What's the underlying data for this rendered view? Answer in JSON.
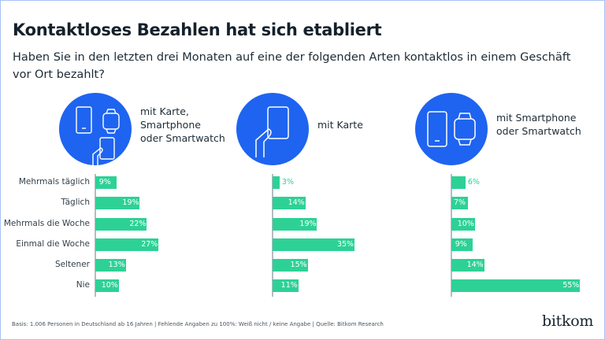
{
  "title": "Kontaktloses Bezahlen hat sich etabliert",
  "subtitle": "Haben Sie in den letzten drei Monaten auf eine der folgenden Arten kontaktlos in einem Geschäft vor Ort bezahlt?",
  "footer": "Basis: 1.006 Personen in Deutschland ab 16 Jahren | Fehlende Angaben zu 100%: Weiß nicht / keine Angabe | Quelle: Bitkom Research",
  "logo": "bitkom",
  "colors": {
    "icon_circle": "#1e64f0",
    "bar": "#2dd196"
  },
  "chart_data": {
    "type": "bar",
    "orientation": "horizontal",
    "unit": "%",
    "categories": [
      "Mehrmals täglich",
      "Täglich",
      "Mehrmals die Woche",
      "Einmal die Woche",
      "Seltener",
      "Nie"
    ],
    "series": [
      {
        "name": "mit Karte,\nSmartphone\noder Smartwatch",
        "icon": "card-phone-watch-icon",
        "values": [
          9,
          19,
          22,
          27,
          13,
          10
        ]
      },
      {
        "name": "mit Karte",
        "icon": "card-hand-icon",
        "values": [
          3,
          14,
          19,
          35,
          15,
          11
        ]
      },
      {
        "name": "mit Smartphone\noder Smartwatch",
        "icon": "phone-watch-icon",
        "values": [
          6,
          7,
          10,
          9,
          14,
          55
        ]
      }
    ]
  }
}
